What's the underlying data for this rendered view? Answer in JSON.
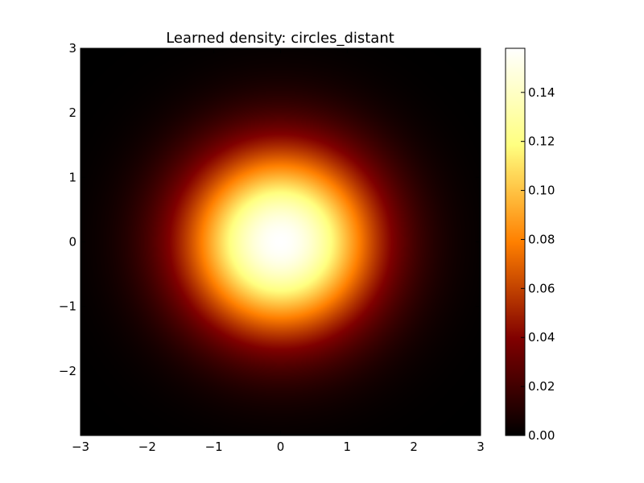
{
  "chart_data": {
    "type": "heatmap",
    "title": "Learned density: circles_distant",
    "xlabel": "",
    "ylabel": "",
    "xlim": [
      -3,
      3
    ],
    "ylim": [
      -3,
      3
    ],
    "x_ticks": [
      -3,
      -2,
      -1,
      0,
      1,
      2,
      3
    ],
    "x_tick_labels": [
      "−3",
      "−2",
      "−1",
      "0",
      "1",
      "2",
      "3"
    ],
    "y_ticks": [
      -2,
      -1,
      0,
      1,
      2,
      3
    ],
    "y_tick_labels": [
      "−2",
      "−1",
      "0",
      "1",
      "2",
      "3"
    ],
    "colormap": "afmhot",
    "grid": false,
    "density": {
      "shape": "isotropic gaussian",
      "center": [
        0,
        0
      ],
      "peak_value": 0.158
    },
    "colorbar": {
      "range": [
        0,
        0.158
      ],
      "ticks": [
        0.0,
        0.02,
        0.04,
        0.06,
        0.08,
        0.1,
        0.12,
        0.14
      ],
      "tick_labels": [
        "0.00",
        "0.02",
        "0.04",
        "0.06",
        "0.08",
        "0.10",
        "0.12",
        "0.14"
      ]
    }
  }
}
